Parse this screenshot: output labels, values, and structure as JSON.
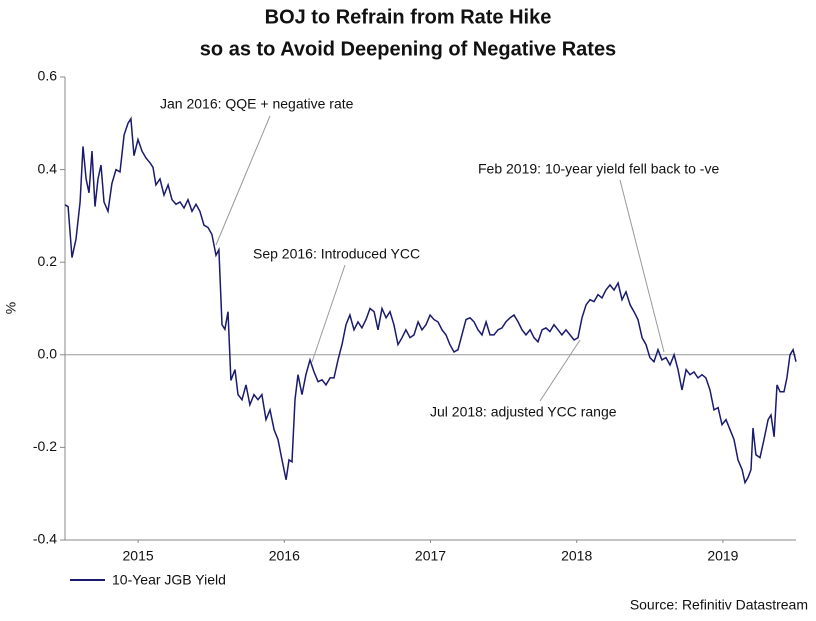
{
  "chart_data": {
    "type": "line",
    "title": [
      "BOJ to Refrain from Rate Hike",
      "so as to Avoid Deepening of Negative Rates"
    ],
    "y_label": "%",
    "source": "Source: Refinitiv Datastream",
    "annotations": [
      "Jan 2016: QQE + negative rate",
      "Sep 2016: Introduced YCC",
      "Feb 2019: 10-year yield fell back to -ve",
      "Jul 2018: adjusted YCC range"
    ],
    "xlim": [
      2015,
      2020
    ],
    "xticks": [
      {
        "value": 2015.5,
        "label": "2015"
      },
      {
        "value": 2016.5,
        "label": "2016"
      },
      {
        "value": 2017.5,
        "label": "2017"
      },
      {
        "value": 2018.5,
        "label": "2018"
      },
      {
        "value": 2019.5,
        "label": "2019"
      }
    ],
    "ylim": [
      -0.4,
      0.6
    ],
    "yticks": [
      0.6,
      0.4,
      0.2,
      {
        "value": 0,
        "label": "0.0"
      },
      -0.2,
      -0.4
    ],
    "x": [
      2015.0,
      2015.021,
      2015.048,
      2015.075,
      2015.103,
      2015.123,
      2015.144,
      2015.164,
      2015.185,
      2015.205,
      2015.226,
      2015.246,
      2015.267,
      2015.294,
      2015.321,
      2015.349,
      2015.376,
      2015.404,
      2015.431,
      2015.451,
      2015.472,
      2015.499,
      2015.527,
      2015.554,
      2015.581,
      2015.602,
      2015.622,
      2015.65,
      2015.677,
      2015.705,
      2015.732,
      2015.759,
      2015.787,
      2015.814,
      2015.841,
      2015.869,
      2015.896,
      2015.923,
      2015.951,
      2015.978,
      2016.005,
      2016.033,
      2016.053,
      2016.074,
      2016.094,
      2016.115,
      2016.135,
      2016.163,
      2016.183,
      2016.211,
      2016.238,
      2016.265,
      2016.293,
      2016.32,
      2016.347,
      2016.375,
      2016.402,
      2016.43,
      2016.457,
      2016.484,
      2016.512,
      2016.532,
      2016.553,
      2016.573,
      2016.594,
      2016.621,
      2016.648,
      2016.676,
      2016.703,
      2016.731,
      2016.758,
      2016.785,
      2016.813,
      2016.84,
      2016.867,
      2016.895,
      2016.922,
      2016.949,
      2016.977,
      2017.004,
      2017.031,
      2017.059,
      2017.086,
      2017.114,
      2017.141,
      2017.168,
      2017.196,
      2017.223,
      2017.25,
      2017.278,
      2017.305,
      2017.332,
      2017.36,
      2017.387,
      2017.415,
      2017.442,
      2017.469,
      2017.497,
      2017.524,
      2017.551,
      2017.579,
      2017.606,
      2017.633,
      2017.661,
      2017.688,
      2017.715,
      2017.743,
      2017.77,
      2017.798,
      2017.825,
      2017.852,
      2017.88,
      2017.907,
      2017.934,
      2017.962,
      2017.989,
      2018.016,
      2018.044,
      2018.071,
      2018.099,
      2018.126,
      2018.153,
      2018.181,
      2018.208,
      2018.235,
      2018.263,
      2018.29,
      2018.317,
      2018.345,
      2018.372,
      2018.399,
      2018.427,
      2018.454,
      2018.482,
      2018.509,
      2018.536,
      2018.564,
      2018.591,
      2018.618,
      2018.646,
      2018.673,
      2018.7,
      2018.728,
      2018.755,
      2018.783,
      2018.81,
      2018.837,
      2018.865,
      2018.892,
      2018.919,
      2018.947,
      2018.974,
      2019.001,
      2019.029,
      2019.056,
      2019.083,
      2019.111,
      2019.138,
      2019.166,
      2019.193,
      2019.22,
      2019.248,
      2019.275,
      2019.302,
      2019.33,
      2019.357,
      2019.384,
      2019.412,
      2019.439,
      2019.467,
      2019.494,
      2019.521,
      2019.549,
      2019.576,
      2019.603,
      2019.631,
      2019.651,
      2019.672,
      2019.692,
      2019.706,
      2019.726,
      2019.754,
      2019.781,
      2019.809,
      2019.829,
      2019.85,
      2019.87,
      2019.891,
      2019.918,
      2019.938,
      2019.959,
      2019.98,
      2020.0
    ],
    "series": [
      {
        "name": "10-Year JGB Yield",
        "color": "#1a1a6e",
        "values": [
          0.324,
          0.32,
          0.21,
          0.25,
          0.33,
          0.45,
          0.38,
          0.35,
          0.44,
          0.32,
          0.38,
          0.41,
          0.33,
          0.31,
          0.37,
          0.4,
          0.395,
          0.475,
          0.5,
          0.51,
          0.43,
          0.465,
          0.44,
          0.425,
          0.415,
          0.405,
          0.367,
          0.38,
          0.345,
          0.367,
          0.335,
          0.325,
          0.33,
          0.317,
          0.335,
          0.31,
          0.325,
          0.31,
          0.28,
          0.275,
          0.26,
          0.215,
          0.227,
          0.065,
          0.055,
          0.093,
          -0.055,
          -0.032,
          -0.086,
          -0.097,
          -0.065,
          -0.108,
          -0.086,
          -0.097,
          -0.086,
          -0.14,
          -0.119,
          -0.162,
          -0.183,
          -0.227,
          -0.27,
          -0.227,
          -0.231,
          -0.097,
          -0.043,
          -0.086,
          -0.043,
          -0.011,
          -0.037,
          -0.058,
          -0.054,
          -0.065,
          -0.05,
          -0.05,
          -0.011,
          0.022,
          0.065,
          0.086,
          0.054,
          0.071,
          0.058,
          0.076,
          0.1,
          0.093,
          0.054,
          0.1,
          0.08,
          0.093,
          0.065,
          0.022,
          0.037,
          0.054,
          0.037,
          0.043,
          0.071,
          0.054,
          0.065,
          0.086,
          0.076,
          0.071,
          0.054,
          0.043,
          0.022,
          0.006,
          0.011,
          0.043,
          0.076,
          0.08,
          0.071,
          0.054,
          0.043,
          0.071,
          0.043,
          0.043,
          0.054,
          0.058,
          0.071,
          0.08,
          0.086,
          0.071,
          0.054,
          0.043,
          0.054,
          0.037,
          0.028,
          0.054,
          0.058,
          0.05,
          0.065,
          0.054,
          0.043,
          0.054,
          0.043,
          0.032,
          0.037,
          0.08,
          0.108,
          0.119,
          0.115,
          0.13,
          0.123,
          0.14,
          0.151,
          0.14,
          0.155,
          0.119,
          0.136,
          0.108,
          0.093,
          0.076,
          0.037,
          0.022,
          -0.006,
          -0.015,
          0.011,
          -0.011,
          -0.006,
          -0.022,
          0.0,
          -0.032,
          -0.076,
          -0.032,
          -0.043,
          -0.037,
          -0.05,
          -0.043,
          -0.05,
          -0.076,
          -0.119,
          -0.114,
          -0.151,
          -0.14,
          -0.162,
          -0.183,
          -0.227,
          -0.248,
          -0.276,
          -0.265,
          -0.248,
          -0.158,
          -0.216,
          -0.222,
          -0.183,
          -0.14,
          -0.13,
          -0.177,
          -0.065,
          -0.08,
          -0.08,
          -0.05,
          0.0,
          0.011,
          -0.015
        ]
      }
    ]
  }
}
